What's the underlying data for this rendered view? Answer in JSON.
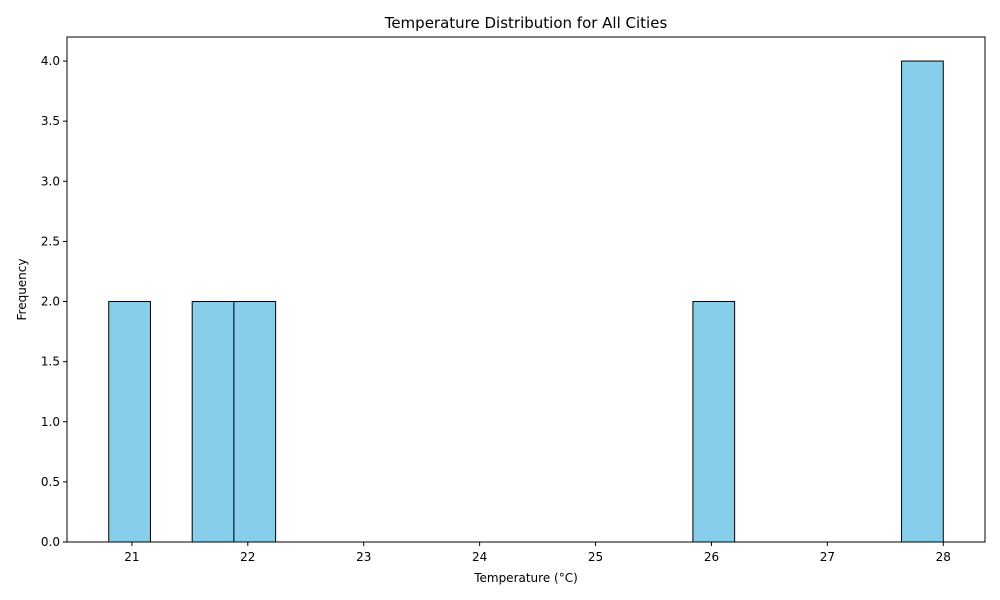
{
  "chart_data": {
    "type": "bar",
    "title": "Temperature Distribution for All Cities",
    "xlabel": "Temperature (°C)",
    "ylabel": "Frequency",
    "xlim": [
      20.44,
      28.36
    ],
    "ylim": [
      0,
      4.2
    ],
    "x_ticks": [
      21,
      22,
      23,
      24,
      25,
      26,
      27,
      28
    ],
    "y_ticks": [
      0.0,
      0.5,
      1.0,
      1.5,
      2.0,
      2.5,
      3.0,
      3.5,
      4.0
    ],
    "bin_edges": [
      20.8,
      21.16,
      21.52,
      21.88,
      22.24,
      22.6,
      22.96,
      23.32,
      23.68,
      24.04,
      24.4,
      24.76,
      25.12,
      25.48,
      25.84,
      26.2,
      26.56,
      26.92,
      27.28,
      27.64,
      28.0
    ],
    "values": [
      2,
      0,
      2,
      2,
      0,
      0,
      0,
      0,
      0,
      0,
      0,
      0,
      0,
      0,
      2,
      0,
      0,
      0,
      0,
      4
    ],
    "bar_color": "#87ceeb",
    "edge_color": "#000000",
    "grid": false
  }
}
